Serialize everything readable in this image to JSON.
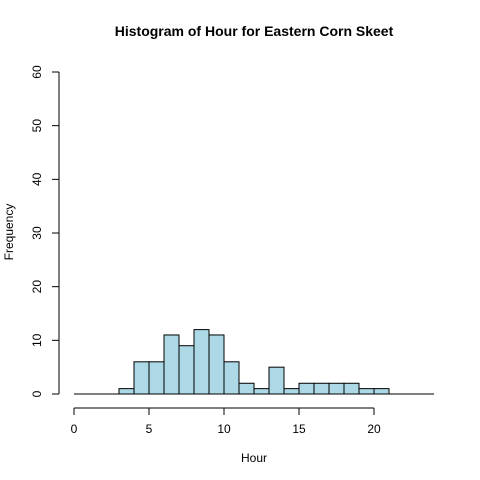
{
  "chart_data": {
    "type": "bar",
    "title": "Histogram of Hour for Eastern Corn Skeet",
    "xlabel": "Hour",
    "ylabel": "Frequency",
    "bin_width": 1,
    "bins": [
      {
        "x0": 3,
        "x1": 4,
        "count": 1
      },
      {
        "x0": 4,
        "x1": 5,
        "count": 6
      },
      {
        "x0": 5,
        "x1": 6,
        "count": 6
      },
      {
        "x0": 6,
        "x1": 7,
        "count": 11
      },
      {
        "x0": 7,
        "x1": 8,
        "count": 9
      },
      {
        "x0": 8,
        "x1": 9,
        "count": 12
      },
      {
        "x0": 9,
        "x1": 10,
        "count": 11
      },
      {
        "x0": 10,
        "x1": 11,
        "count": 6
      },
      {
        "x0": 11,
        "x1": 12,
        "count": 2
      },
      {
        "x0": 12,
        "x1": 13,
        "count": 1
      },
      {
        "x0": 13,
        "x1": 14,
        "count": 5
      },
      {
        "x0": 14,
        "x1": 15,
        "count": 1
      },
      {
        "x0": 15,
        "x1": 16,
        "count": 2
      },
      {
        "x0": 16,
        "x1": 17,
        "count": 2
      },
      {
        "x0": 17,
        "x1": 18,
        "count": 2
      },
      {
        "x0": 18,
        "x1": 19,
        "count": 2
      },
      {
        "x0": 19,
        "x1": 20,
        "count": 1
      },
      {
        "x0": 20,
        "x1": 21,
        "count": 1
      }
    ],
    "xlim": [
      0,
      24
    ],
    "ylim": [
      0,
      60
    ],
    "x_ticks": [
      0,
      5,
      10,
      15,
      20
    ],
    "y_ticks": [
      0,
      10,
      20,
      30,
      40,
      50,
      60
    ],
    "bar_color": "#add8e6",
    "grid": false,
    "legend": "none"
  }
}
